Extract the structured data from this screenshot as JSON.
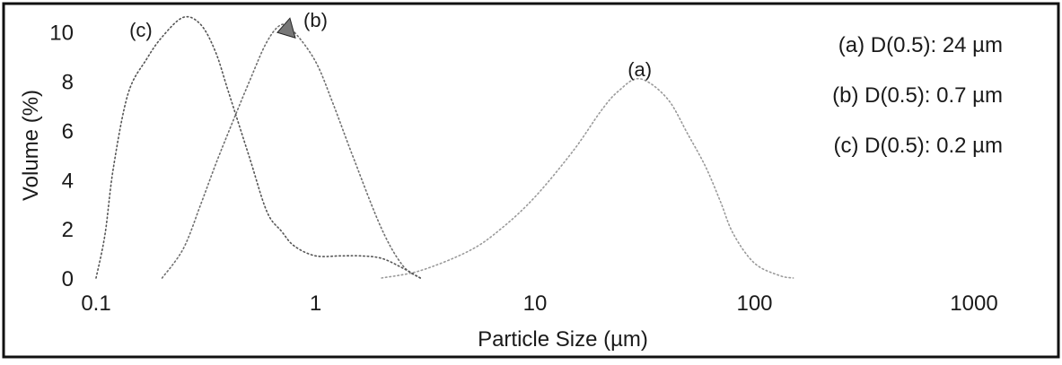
{
  "chart_data": {
    "type": "line",
    "xlabel": "Particle Size (µm)",
    "ylabel": "Volume (%)",
    "x_scale": "log",
    "xlim": [
      0.1,
      1000
    ],
    "ylim": [
      0,
      10.5
    ],
    "x_ticks": [
      0.1,
      1,
      10,
      100,
      1000
    ],
    "x_tick_labels": [
      "0.1",
      "1",
      "10",
      "100",
      "1000"
    ],
    "y_ticks": [
      0,
      2,
      4,
      6,
      8,
      10
    ],
    "y_tick_labels": [
      "0",
      "2",
      "4",
      "6",
      "8",
      "10"
    ],
    "grid": false,
    "legend_position": "top-right",
    "legend": [
      "(a) D(0.5): 24 µm",
      "(b) D(0.5): 0.7 µm",
      "(c) D(0.5): 0.2 µm"
    ],
    "series": [
      {
        "name": "(a)",
        "label": "(a)",
        "color": "#9a9a9a",
        "x": [
          2,
          3,
          5,
          7,
          10,
          15,
          20,
          24,
          30,
          40,
          50,
          60,
          70,
          80,
          100,
          130,
          150
        ],
        "y": [
          0,
          0.3,
          1.1,
          2.0,
          3.3,
          5.2,
          6.8,
          7.6,
          8.1,
          7.3,
          5.8,
          4.5,
          3.1,
          1.8,
          0.6,
          0.1,
          0
        ]
      },
      {
        "name": "(b)",
        "label": "(b)",
        "color": "#707070",
        "x": [
          0.2,
          0.25,
          0.3,
          0.35,
          0.4,
          0.5,
          0.6,
          0.7,
          0.8,
          1.0,
          1.2,
          1.5,
          2.0,
          2.5,
          3.0
        ],
        "y": [
          0,
          1.2,
          3.0,
          4.6,
          5.9,
          8.0,
          9.6,
          10.3,
          10.0,
          8.8,
          7.1,
          4.8,
          2.0,
          0.5,
          0
        ]
      },
      {
        "name": "(c)",
        "label": "(c)",
        "color": "#555555",
        "x": [
          0.1,
          0.11,
          0.12,
          0.14,
          0.17,
          0.2,
          0.25,
          0.3,
          0.35,
          0.4,
          0.5,
          0.6,
          0.7,
          0.8,
          1.0,
          1.3,
          1.6,
          2.0,
          2.5,
          3.0
        ],
        "y": [
          0,
          1.8,
          4.5,
          7.5,
          8.9,
          9.8,
          10.6,
          10.3,
          9.2,
          7.6,
          4.9,
          2.7,
          1.9,
          1.3,
          0.9,
          0.9,
          0.9,
          0.8,
          0.4,
          0
        ]
      }
    ],
    "label_positions": {
      "(a)": [
        30,
        8.2
      ],
      "(b)": [
        1.0,
        10.2
      ],
      "(c)": [
        0.16,
        9.8
      ]
    }
  }
}
